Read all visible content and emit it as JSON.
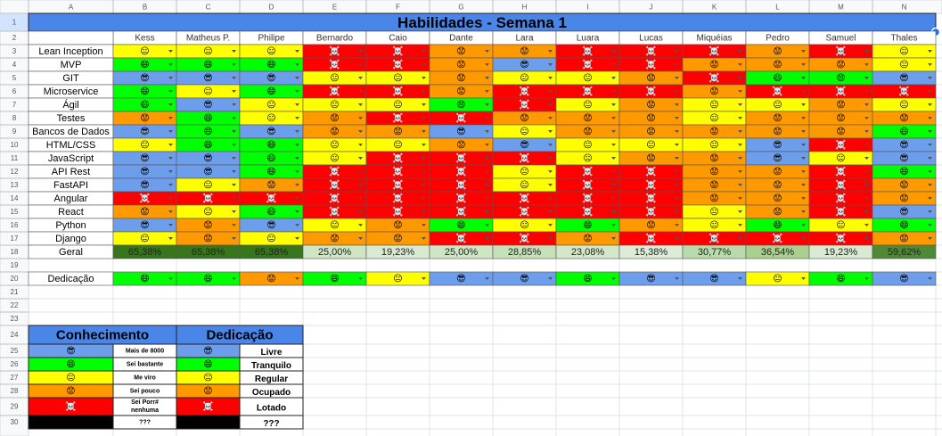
{
  "column_letters": [
    "A",
    "B",
    "C",
    "D",
    "E",
    "F",
    "G",
    "H",
    "I",
    "J",
    "K",
    "L",
    "M",
    "N"
  ],
  "row_numbers": [
    1,
    2,
    3,
    4,
    5,
    6,
    7,
    8,
    9,
    10,
    11,
    12,
    13,
    14,
    15,
    16,
    17,
    18,
    19,
    20,
    21,
    22,
    23,
    24,
    25,
    26,
    27,
    28,
    29,
    30
  ],
  "title": "Habilidades - Semana 1",
  "people": [
    "Kess",
    "Matheus P.",
    "Philipe",
    "Bernardo",
    "Caio",
    "Dante",
    "Lara",
    "Luara",
    "Lucas",
    "Miquéias",
    "Pedro",
    "Samuel",
    "Thales"
  ],
  "levels": [
    {
      "emoji": "😎",
      "color": "#6d9eeb",
      "knowledge": "Mais de 8000",
      "dedication": "Livre"
    },
    {
      "emoji": "😄",
      "color": "#00ff00",
      "knowledge": "Sei bastante",
      "dedication": "Tranquilo"
    },
    {
      "emoji": "😐",
      "color": "#ffff00",
      "knowledge": "Me viro",
      "dedication": "Regular"
    },
    {
      "emoji": "😟",
      "color": "#ff9900",
      "knowledge": "Sei pouco",
      "dedication": "Ocupado"
    },
    {
      "emoji": "☠️",
      "color": "#ff0000",
      "knowledge": "Sei Porr# nenhuma",
      "dedication": "Lotado"
    },
    {
      "color": "#000000",
      "knowledge": "???",
      "dedication": "???"
    }
  ],
  "skills": [
    {
      "name": "Lean Inception",
      "cells": [
        "😐",
        "😐",
        "😐",
        "☠️",
        "☠️",
        "😟",
        "😟",
        "☠️",
        "☠️",
        "☠️",
        "😟",
        "☠️",
        "😐"
      ]
    },
    {
      "name": "MVP",
      "cells": [
        "😄",
        "😄",
        "😄",
        "☠️",
        "☠️",
        "😟",
        "😎",
        "☠️",
        "☠️",
        "😟",
        "😟",
        "😟",
        "😐"
      ]
    },
    {
      "name": "GIT",
      "cells": [
        "😎",
        "😎",
        "😎",
        "😐",
        "😐",
        "😟",
        "😐",
        "😐",
        "😟",
        "☠️",
        "😄",
        "😄",
        "😎"
      ]
    },
    {
      "name": "Microservice",
      "cells": [
        "😄",
        "😐",
        "😄",
        "☠️",
        "☠️",
        "😟",
        "☠️",
        "☠️",
        "☠️",
        "😟",
        "☠️",
        "☠️",
        "☠️"
      ]
    },
    {
      "name": "Ágil",
      "cells": [
        "😄",
        "😎",
        "😐",
        "😐",
        "😐",
        "😄",
        "☠️",
        "😐",
        "😟",
        "😐",
        "😐",
        "😟",
        "😐"
      ]
    },
    {
      "name": "Testes",
      "cells": [
        "😟",
        "😄",
        "😐",
        "😟",
        "☠️",
        "☠️",
        "😟",
        "😟",
        "😟",
        "😐",
        "😟",
        "😟",
        "😟"
      ]
    },
    {
      "name": "Bancos de Dados",
      "cells": [
        "😎",
        "😄",
        "😎",
        "😟",
        "😟",
        "😎",
        "😐",
        "😟",
        "😟",
        "😟",
        "😟",
        "😟",
        "😄"
      ]
    },
    {
      "name": "HTML/CSS",
      "cells": [
        "😐",
        "😄",
        "😄",
        "😐",
        "😐",
        "😟",
        "😎",
        "😐",
        "😐",
        "😐",
        "😎",
        "☠️",
        "😎"
      ]
    },
    {
      "name": "JavaScript",
      "cells": [
        "😎",
        "😎",
        "😄",
        "😐",
        "☠️",
        "☠️",
        "☠️",
        "😐",
        "😟",
        "😟",
        "😎",
        "😐",
        "😎"
      ]
    },
    {
      "name": "API Rest",
      "cells": [
        "😎",
        "😎",
        "😄",
        "☠️",
        "☠️",
        "☠️",
        "😐",
        "☠️",
        "☠️",
        "😟",
        "😟",
        "☠️",
        "😄"
      ]
    },
    {
      "name": "FastAPI",
      "cells": [
        "😎",
        "😐",
        "😟",
        "☠️",
        "☠️",
        "☠️",
        "😐",
        "☠️",
        "☠️",
        "😟",
        "😟",
        "☠️",
        "😟"
      ]
    },
    {
      "name": "Angular",
      "cells": [
        "☠️",
        "☠️",
        "☠️",
        "☠️",
        "☠️",
        "☠️",
        "☠️",
        "☠️",
        "☠️",
        "😟",
        "😟",
        "☠️",
        "😟"
      ]
    },
    {
      "name": "React",
      "cells": [
        "😟",
        "😐",
        "😄",
        "☠️",
        "☠️",
        "☠️",
        "☠️",
        "☠️",
        "☠️",
        "😐",
        "😟",
        "☠️",
        "😎"
      ]
    },
    {
      "name": "Python",
      "cells": [
        "😎",
        "😟",
        "😎",
        "😐",
        "😟",
        "😄",
        "😐",
        "😄",
        "😟",
        "😐",
        "😄",
        "😐",
        "😄"
      ]
    },
    {
      "name": "Django",
      "cells": [
        "😐",
        "😟",
        "😐",
        "😟",
        "😟",
        "☠️",
        "☠️",
        "😟",
        "☠️",
        "☠️",
        "☠️",
        "☠️",
        "😟"
      ]
    }
  ],
  "overall": {
    "label": "Geral",
    "values": [
      "65,38%",
      "65,38%",
      "65,38%",
      "25,00%",
      "19,23%",
      "25,00%",
      "28,85%",
      "23,08%",
      "15,38%",
      "30,77%",
      "36,54%",
      "19,23%",
      "59,62%"
    ],
    "colors": [
      "#38761d",
      "#38761d",
      "#38761d",
      "#cfe6c4",
      "#d9ead3",
      "#cfe6c4",
      "#c5e1b8",
      "#d2e8c8",
      "#dcecd6",
      "#b9dbaa",
      "#a9d08e",
      "#d9ead3",
      "#4e8a35"
    ]
  },
  "dedication": {
    "label": "Dedicação",
    "cells": [
      "😄",
      "😄",
      "😟",
      "😄",
      "😐",
      "😎",
      "😎",
      "😄",
      "😎",
      "😎",
      "😐",
      "😄",
      "😎"
    ]
  },
  "legend_titles": {
    "knowledge": "Conhecimento",
    "dedication": "Dedicação"
  }
}
